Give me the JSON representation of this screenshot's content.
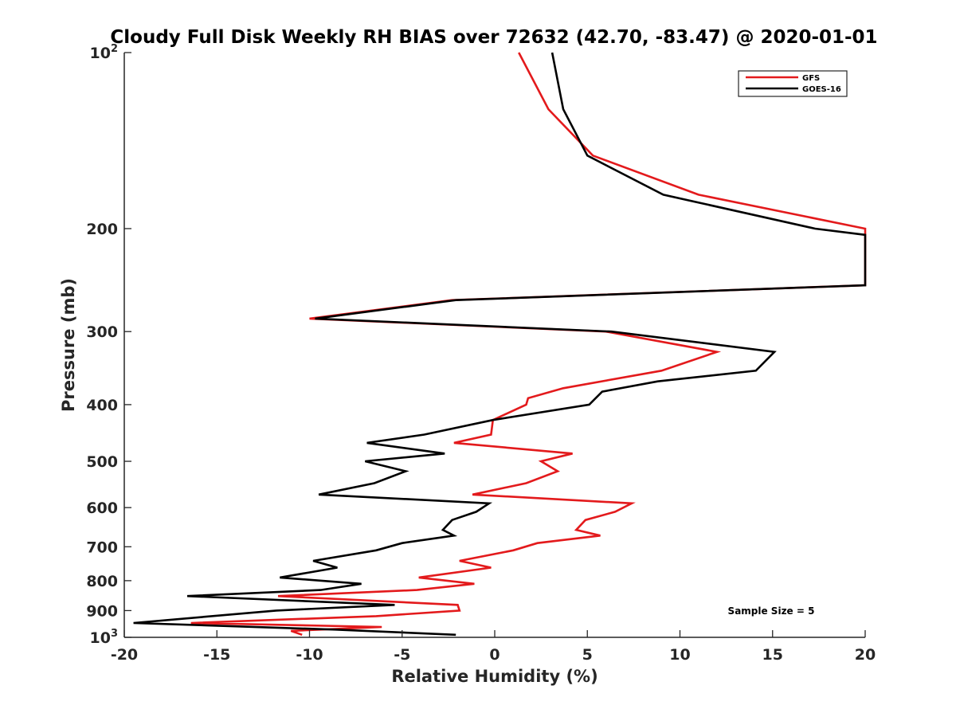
{
  "chart_data": {
    "type": "line",
    "title": "Cloudy Full Disk Weekly RH BIAS over 72632 (42.70, -83.47) @ 2020-01-01",
    "xlabel": "Relative Humidity (%)",
    "ylabel": "Pressure (mb)",
    "xlim": [
      -20,
      20
    ],
    "ylim": [
      100,
      1000
    ],
    "yscale": "log",
    "yreversed": true,
    "grid": false,
    "legend_position": "top-right",
    "x_ticks": [
      {
        "value": -20,
        "label": "-20"
      },
      {
        "value": -15,
        "label": "-15"
      },
      {
        "value": -10,
        "label": "-10"
      },
      {
        "value": -5,
        "label": "-5"
      },
      {
        "value": 0,
        "label": "0"
      },
      {
        "value": 5,
        "label": "5"
      },
      {
        "value": 10,
        "label": "10"
      },
      {
        "value": 15,
        "label": "15"
      },
      {
        "value": 20,
        "label": "20"
      }
    ],
    "y_ticks": [
      {
        "value": 100,
        "label": "10",
        "sup": "2"
      },
      {
        "value": 200,
        "label": "200"
      },
      {
        "value": 300,
        "label": "300"
      },
      {
        "value": 400,
        "label": "400"
      },
      {
        "value": 500,
        "label": "500"
      },
      {
        "value": 600,
        "label": "600"
      },
      {
        "value": 700,
        "label": "700"
      },
      {
        "value": 800,
        "label": "800"
      },
      {
        "value": 900,
        "label": "900"
      },
      {
        "value": 1000,
        "label": "10",
        "sup": "3"
      }
    ],
    "annotation": "Sample Size = 5",
    "series": [
      {
        "name": "GFS",
        "color": "#e31a1c",
        "points": [
          {
            "x": 1.3,
            "y": 100
          },
          {
            "x": 2.9,
            "y": 125
          },
          {
            "x": 5.3,
            "y": 150
          },
          {
            "x": 11.0,
            "y": 175
          },
          {
            "x": 20.0,
            "y": 200
          },
          {
            "x": 20.0,
            "y": 250
          },
          {
            "x": -2.3,
            "y": 265
          },
          {
            "x": -10.0,
            "y": 285
          },
          {
            "x": 6.0,
            "y": 300
          },
          {
            "x": 12.0,
            "y": 325
          },
          {
            "x": 9.0,
            "y": 350
          },
          {
            "x": 3.7,
            "y": 375
          },
          {
            "x": 1.8,
            "y": 390
          },
          {
            "x": 1.7,
            "y": 400
          },
          {
            "x": -0.1,
            "y": 425
          },
          {
            "x": -0.2,
            "y": 450
          },
          {
            "x": -2.2,
            "y": 465
          },
          {
            "x": 4.2,
            "y": 485
          },
          {
            "x": 2.5,
            "y": 500
          },
          {
            "x": 3.4,
            "y": 520
          },
          {
            "x": 1.7,
            "y": 545
          },
          {
            "x": -1.2,
            "y": 570
          },
          {
            "x": 7.4,
            "y": 590
          },
          {
            "x": 6.5,
            "y": 610
          },
          {
            "x": 4.9,
            "y": 630
          },
          {
            "x": 4.4,
            "y": 655
          },
          {
            "x": 5.7,
            "y": 670
          },
          {
            "x": 2.3,
            "y": 690
          },
          {
            "x": 1.0,
            "y": 710
          },
          {
            "x": -1.9,
            "y": 740
          },
          {
            "x": -0.2,
            "y": 760
          },
          {
            "x": -4.1,
            "y": 790
          },
          {
            "x": -1.1,
            "y": 810
          },
          {
            "x": -4.2,
            "y": 830
          },
          {
            "x": -11.7,
            "y": 850
          },
          {
            "x": -2.0,
            "y": 880
          },
          {
            "x": -1.9,
            "y": 900
          },
          {
            "x": -6.4,
            "y": 920
          },
          {
            "x": -16.4,
            "y": 945
          },
          {
            "x": -6.1,
            "y": 960
          },
          {
            "x": -11.0,
            "y": 975
          },
          {
            "x": -10.4,
            "y": 990
          }
        ]
      },
      {
        "name": "GOES-16",
        "color": "#000000",
        "points": [
          {
            "x": 3.1,
            "y": 100
          },
          {
            "x": 3.7,
            "y": 125
          },
          {
            "x": 5.0,
            "y": 150
          },
          {
            "x": 9.1,
            "y": 175
          },
          {
            "x": 17.3,
            "y": 200
          },
          {
            "x": 20.0,
            "y": 205
          },
          {
            "x": 20.0,
            "y": 250
          },
          {
            "x": -2.1,
            "y": 265
          },
          {
            "x": -9.7,
            "y": 285
          },
          {
            "x": 6.3,
            "y": 300
          },
          {
            "x": 15.1,
            "y": 325
          },
          {
            "x": 14.1,
            "y": 350
          },
          {
            "x": 8.8,
            "y": 365
          },
          {
            "x": 5.8,
            "y": 380
          },
          {
            "x": 5.1,
            "y": 400
          },
          {
            "x": -0.1,
            "y": 425
          },
          {
            "x": -3.8,
            "y": 450
          },
          {
            "x": -6.9,
            "y": 465
          },
          {
            "x": -2.7,
            "y": 485
          },
          {
            "x": -7.0,
            "y": 500
          },
          {
            "x": -4.8,
            "y": 520
          },
          {
            "x": -6.5,
            "y": 545
          },
          {
            "x": -9.5,
            "y": 570
          },
          {
            "x": -0.3,
            "y": 590
          },
          {
            "x": -1.0,
            "y": 610
          },
          {
            "x": -2.3,
            "y": 630
          },
          {
            "x": -2.8,
            "y": 655
          },
          {
            "x": -2.2,
            "y": 670
          },
          {
            "x": -5.0,
            "y": 690
          },
          {
            "x": -6.4,
            "y": 710
          },
          {
            "x": -9.8,
            "y": 740
          },
          {
            "x": -8.5,
            "y": 760
          },
          {
            "x": -11.6,
            "y": 790
          },
          {
            "x": -7.2,
            "y": 810
          },
          {
            "x": -9.4,
            "y": 830
          },
          {
            "x": -16.6,
            "y": 850
          },
          {
            "x": -5.4,
            "y": 880
          },
          {
            "x": -11.8,
            "y": 900
          },
          {
            "x": -19.5,
            "y": 945
          },
          {
            "x": -8.6,
            "y": 970
          },
          {
            "x": -2.1,
            "y": 990
          }
        ]
      }
    ]
  }
}
